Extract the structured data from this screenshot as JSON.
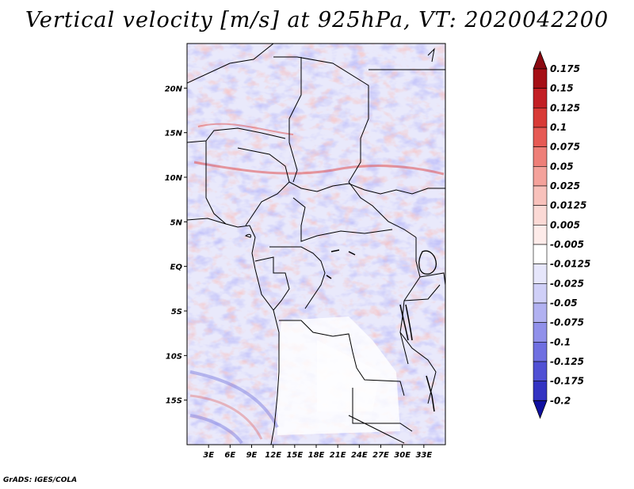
{
  "title": "Vertical velocity [m/s] at 925hPa, VT: 2020042200",
  "credit": "GrADS: IGES/COLA",
  "map": {
    "lon_range": [
      0,
      36
    ],
    "lat_range": [
      -20,
      25
    ],
    "lat_ticks": [
      {
        "value": 20,
        "label": "20N"
      },
      {
        "value": 15,
        "label": "15N"
      },
      {
        "value": 10,
        "label": "10N"
      },
      {
        "value": 5,
        "label": "5N"
      },
      {
        "value": 0,
        "label": "EQ"
      },
      {
        "value": -5,
        "label": "5S"
      },
      {
        "value": -10,
        "label": "10S"
      },
      {
        "value": -15,
        "label": "15S"
      }
    ],
    "lon_ticks": [
      {
        "value": 3,
        "label": "3E"
      },
      {
        "value": 6,
        "label": "6E"
      },
      {
        "value": 9,
        "label": "9E"
      },
      {
        "value": 12,
        "label": "12E"
      },
      {
        "value": 15,
        "label": "15E"
      },
      {
        "value": 18,
        "label": "18E"
      },
      {
        "value": 21,
        "label": "21E"
      },
      {
        "value": 24,
        "label": "24E"
      },
      {
        "value": 27,
        "label": "27E"
      },
      {
        "value": 30,
        "label": "30E"
      },
      {
        "value": 33,
        "label": "33E"
      }
    ]
  },
  "colorbar": {
    "levels": [
      {
        "label": "0.175",
        "color": "#a50f15"
      },
      {
        "label": "0.15",
        "color": "#c21f24"
      },
      {
        "label": "0.125",
        "color": "#d83a36"
      },
      {
        "label": "0.1",
        "color": "#e65a54"
      },
      {
        "label": "0.075",
        "color": "#ee7f78"
      },
      {
        "label": "0.05",
        "color": "#f4a29b"
      },
      {
        "label": "0.025",
        "color": "#f8c1bb"
      },
      {
        "label": "0.0125",
        "color": "#fbd9d5"
      },
      {
        "label": "0.005",
        "color": "#fdebe9"
      },
      {
        "label": "-0.005",
        "color": "#ffffff"
      },
      {
        "label": "-0.0125",
        "color": "#e6e6fb"
      },
      {
        "label": "-0.025",
        "color": "#cfcff7"
      },
      {
        "label": "-0.05",
        "color": "#b1b1f1"
      },
      {
        "label": "-0.075",
        "color": "#9090ea"
      },
      {
        "label": "-0.1",
        "color": "#6f6fe1"
      },
      {
        "label": "-0.125",
        "color": "#5050d4"
      },
      {
        "label": "-0.175",
        "color": "#3333c2"
      },
      {
        "label": "-0.2",
        "color": "#1d1db0"
      }
    ],
    "top_color": "#8b0a12",
    "bottom_color": "#1010a0"
  }
}
